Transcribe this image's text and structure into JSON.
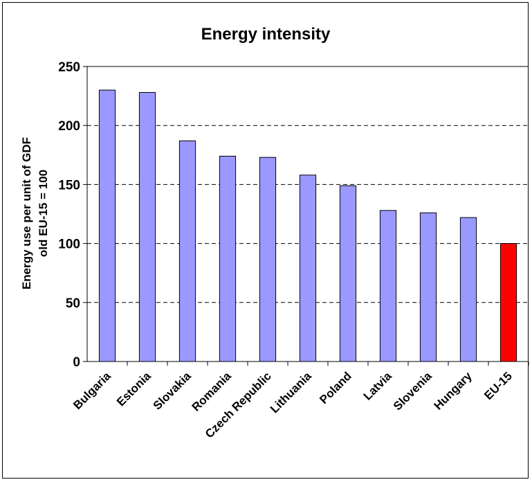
{
  "chart_data": {
    "type": "bar",
    "title": "Energy intensity",
    "ylabel_lines": [
      "Energy use per unit of GDF",
      "old EU-15 = 100"
    ],
    "xlabel": "",
    "ylim": [
      0,
      250
    ],
    "yticks": [
      0,
      50,
      100,
      150,
      200,
      250
    ],
    "grid": "horizontal-dashed",
    "categories": [
      "Bulgaria",
      "Estonia",
      "Slovakia",
      "Romania",
      "Czech Republic",
      "Lithuania",
      "Poland",
      "Latvia",
      "Slovenia",
      "Hungary",
      "EU-15"
    ],
    "values": [
      230,
      228,
      187,
      174,
      173,
      158,
      149,
      128,
      126,
      122,
      100
    ],
    "colors": {
      "bar": "#9999ff",
      "highlight": "#ff0000",
      "highlight_category": "EU-15",
      "grid": "#000000"
    }
  }
}
